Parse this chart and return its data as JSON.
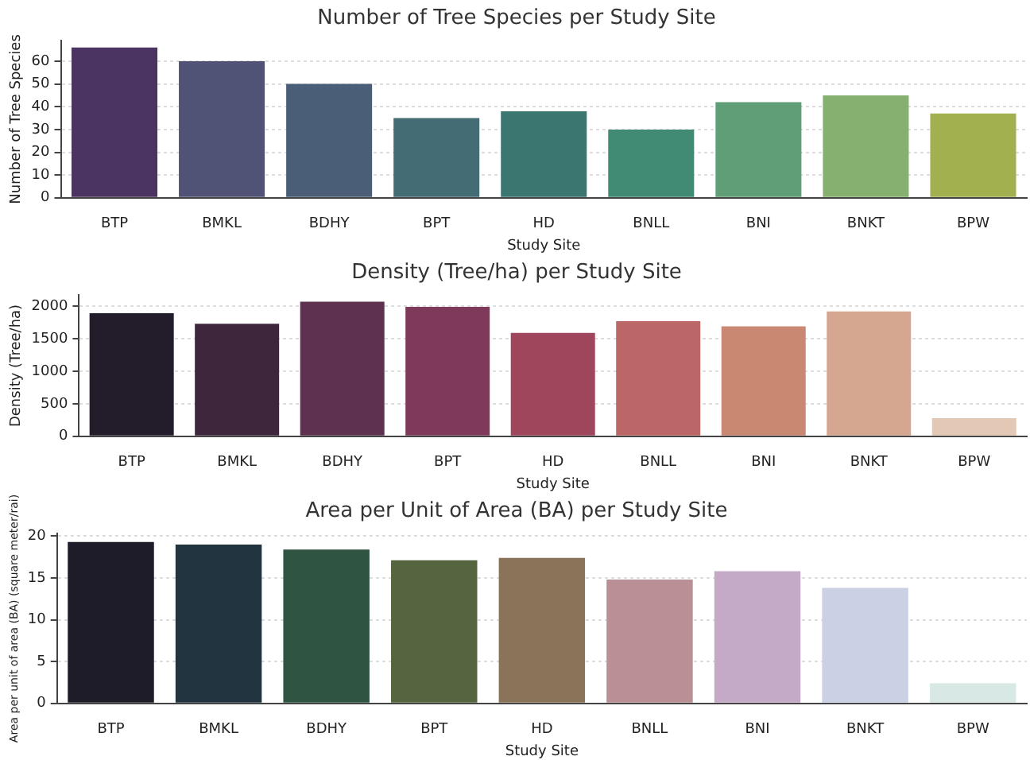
{
  "chart_data": [
    {
      "type": "bar",
      "title": "Number of Tree Species per Study Site",
      "xlabel": "Study Site",
      "ylabel": "Number of Tree Species",
      "categories": [
        "BTP",
        "BMKL",
        "BDHY",
        "BPT",
        "HD",
        "BNLL",
        "BNI",
        "BNKT",
        "BPW"
      ],
      "values": [
        66,
        60,
        50,
        35,
        38,
        30,
        42,
        45,
        37
      ],
      "colors": [
        "#4b3461",
        "#515376",
        "#4a5f77",
        "#436c75",
        "#3c7670",
        "#418a74",
        "#5f9e76",
        "#86b070",
        "#a3b050"
      ],
      "ylim": [
        0,
        69
      ],
      "yticks": [
        0,
        10,
        20,
        30,
        40,
        50,
        60
      ],
      "grid": "y"
    },
    {
      "type": "bar",
      "title": "Density (Tree/ha) per Study Site",
      "xlabel": "Study Site",
      "ylabel": "Density (Tree/ha)",
      "categories": [
        "BTP",
        "BMKL",
        "BDHY",
        "BPT",
        "HD",
        "BNLL",
        "BNI",
        "BNKT",
        "BPW"
      ],
      "values": [
        1890,
        1730,
        2070,
        1990,
        1590,
        1770,
        1690,
        1920,
        280
      ],
      "colors": [
        "#231c2b",
        "#3e263c",
        "#5e3150",
        "#7f395a",
        "#a0465c",
        "#bc6767",
        "#c98872",
        "#d6a790",
        "#e2c8b5"
      ],
      "ylim": [
        0,
        2170
      ],
      "yticks": [
        0,
        500,
        1000,
        1500,
        2000
      ],
      "grid": "y"
    },
    {
      "type": "bar",
      "title": "Area per Unit of Area (BA) per Study Site",
      "xlabel": "Study Site",
      "ylabel": "Area per unit of area (BA) (square meter/rai)",
      "categories": [
        "BTP",
        "BMKL",
        "BDHY",
        "BPT",
        "HD",
        "BNLL",
        "BNI",
        "BNKT",
        "BPW"
      ],
      "values": [
        19.3,
        19.0,
        18.4,
        17.1,
        17.4,
        14.8,
        15.8,
        13.8,
        2.4
      ],
      "colors": [
        "#1e1c28",
        "#22343f",
        "#2f5442",
        "#55653f",
        "#8a7459",
        "#bb8f96",
        "#c5aac8",
        "#ccd0e4",
        "#d8e8e4"
      ],
      "ylim": [
        0,
        20.3
      ],
      "yticks": [
        0,
        5,
        10,
        15,
        20
      ],
      "grid": "y"
    }
  ]
}
